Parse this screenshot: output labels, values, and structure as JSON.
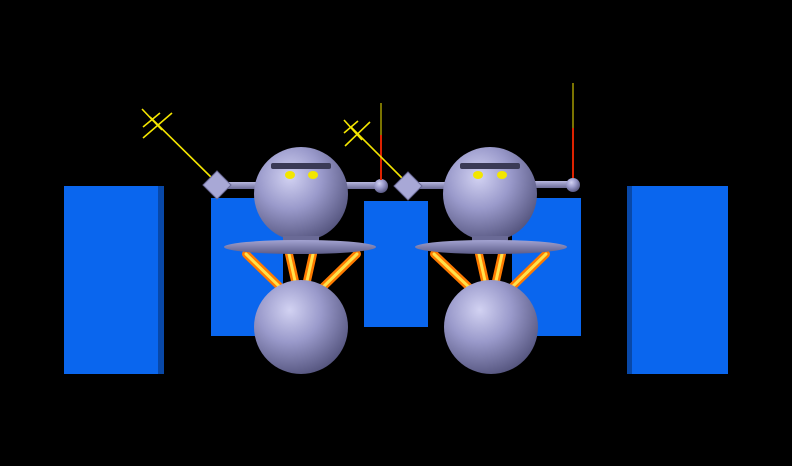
{
  "scene": {
    "description_free": true,
    "background": "#000000",
    "colors": {
      "block": "#0a66ee",
      "block_side": "#0848a8",
      "robot_body": "#9b9bcc",
      "robot_body_light": "#c9c9ee",
      "robot_body_dark": "#55557f",
      "platform": "#8585b5",
      "eyes": "#f2e600",
      "brow": "#3a3a55",
      "spring_inner": "#ffe24a",
      "spring_outer": "#ff7a00",
      "antenna_red": "#dd2200",
      "antenna_yellow": "#f5e600",
      "hand_diamond": "#a8a8d6"
    },
    "robot_count": 2,
    "block_count": 5
  }
}
